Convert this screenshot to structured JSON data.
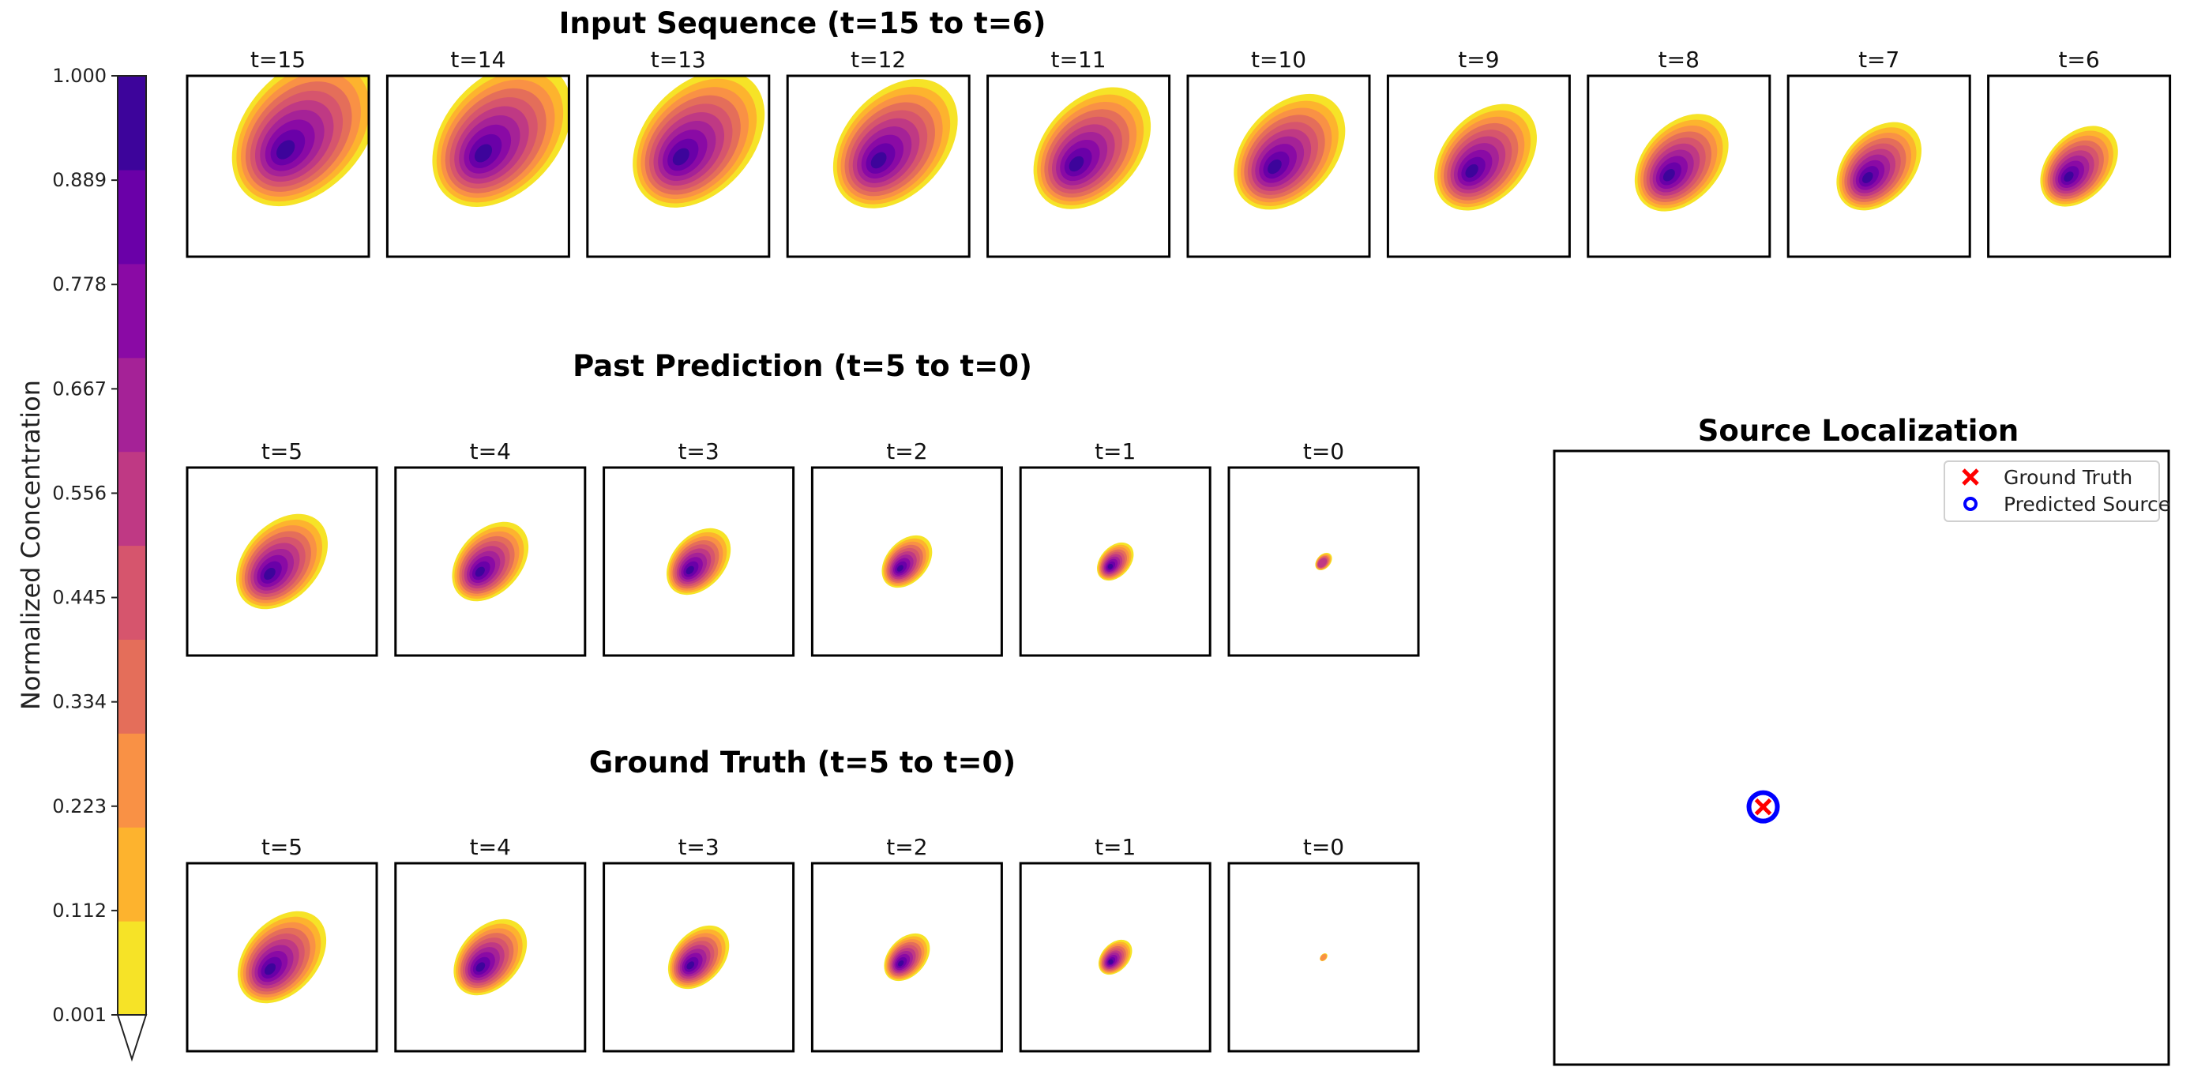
{
  "chart_data": {
    "type": "heatmap",
    "colormap": "plasma_r",
    "colorbar": {
      "label": "Normalized Concentration",
      "ticks": [
        "0.001",
        "0.112",
        "0.223",
        "0.334",
        "0.445",
        "0.556",
        "0.667",
        "0.778",
        "0.889",
        "1.000"
      ],
      "min": 0.001,
      "max": 1.0,
      "levels": [
        "#f6e327",
        "#fdb32e",
        "#f99145",
        "#e46e5a",
        "#d6556d",
        "#bf3984",
        "#a52297",
        "#8a0aa5",
        "#6a00a8",
        "#3d049b"
      ],
      "extend": "min"
    },
    "panels": {
      "input_sequence": {
        "title": "Input Sequence (t=15 to t=6)",
        "frames": [
          {
            "label": "t=15",
            "spread": 1.0
          },
          {
            "label": "t=14",
            "spread": 0.95
          },
          {
            "label": "t=13",
            "spread": 0.9
          },
          {
            "label": "t=12",
            "spread": 0.85
          },
          {
            "label": "t=11",
            "spread": 0.8
          },
          {
            "label": "t=10",
            "spread": 0.76
          },
          {
            "label": "t=9",
            "spread": 0.7
          },
          {
            "label": "t=8",
            "spread": 0.64
          },
          {
            "label": "t=7",
            "spread": 0.58
          },
          {
            "label": "t=6",
            "spread": 0.53
          }
        ]
      },
      "past_prediction": {
        "title": "Past Prediction (t=5 to t=0)",
        "frames": [
          {
            "label": "t=5",
            "spread": 0.6
          },
          {
            "label": "t=4",
            "spread": 0.5
          },
          {
            "label": "t=3",
            "spread": 0.42
          },
          {
            "label": "t=2",
            "spread": 0.33
          },
          {
            "label": "t=1",
            "spread": 0.24
          },
          {
            "label": "t=0",
            "spread": 0.11
          }
        ]
      },
      "ground_truth": {
        "title": "Ground Truth (t=5 to t=0)",
        "frames": [
          {
            "label": "t=5",
            "spread": 0.58
          },
          {
            "label": "t=4",
            "spread": 0.48
          },
          {
            "label": "t=3",
            "spread": 0.4
          },
          {
            "label": "t=2",
            "spread": 0.3
          },
          {
            "label": "t=1",
            "spread": 0.22
          },
          {
            "label": "t=0",
            "spread": 0.05
          }
        ]
      }
    },
    "source_localization": {
      "title": "Source Localization",
      "ground_truth": {
        "x": 0.34,
        "y": 0.42,
        "label": "Ground Truth",
        "marker": "x",
        "color": "#ff0000"
      },
      "predicted": {
        "x": 0.34,
        "y": 0.42,
        "label": "Predicted Source",
        "marker": "o",
        "color": "#0000ff"
      },
      "legend_position": "upper right"
    }
  }
}
